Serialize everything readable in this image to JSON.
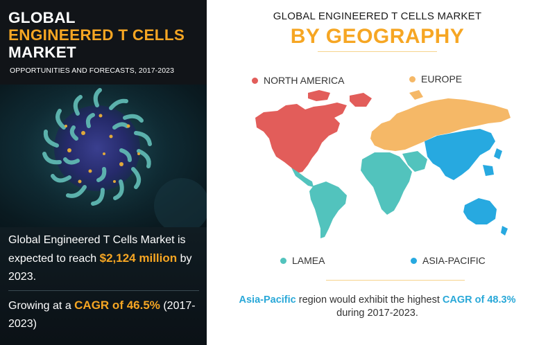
{
  "left": {
    "title_line1": "GLOBAL",
    "title_line2": "ENGINEERED T CELLS",
    "title_line3": "MARKET",
    "subtitle": "OPPORTUNITIES AND FORECASTS, 2017-2023",
    "stat1_prefix": "Global Engineered T Cells Market is expected to reach ",
    "stat1_value": "$2,124 million",
    "stat1_suffix": " by 2023.",
    "stat2_prefix": "Growing at a ",
    "stat2_value": "CAGR of 46.5%",
    "stat2_suffix": " (2017-2023)"
  },
  "right": {
    "title_small": "GLOBAL ENGINEERED T CELLS MARKET",
    "title_big": "BY GEOGRAPHY",
    "legend": [
      {
        "label": "NORTH AMERICA",
        "color": "#e25d5a"
      },
      {
        "label": "EUROPE",
        "color": "#f5b867"
      },
      {
        "label": "LAMEA",
        "color": "#52c3bd"
      },
      {
        "label": "ASIA-PACIFIC",
        "color": "#27a9e0"
      }
    ],
    "footer_region": "Asia-Pacific",
    "footer_mid": " region would exhibit the highest ",
    "footer_cagr": "CAGR of 48.3%",
    "footer_line2": "during 2017-2023."
  },
  "colors": {
    "accent_orange": "#f6a623",
    "accent_blue": "#29a8d8",
    "north_america": "#e25d5a",
    "europe": "#f5b867",
    "lamea": "#52c3bd",
    "asia_pacific": "#27a9e0"
  }
}
